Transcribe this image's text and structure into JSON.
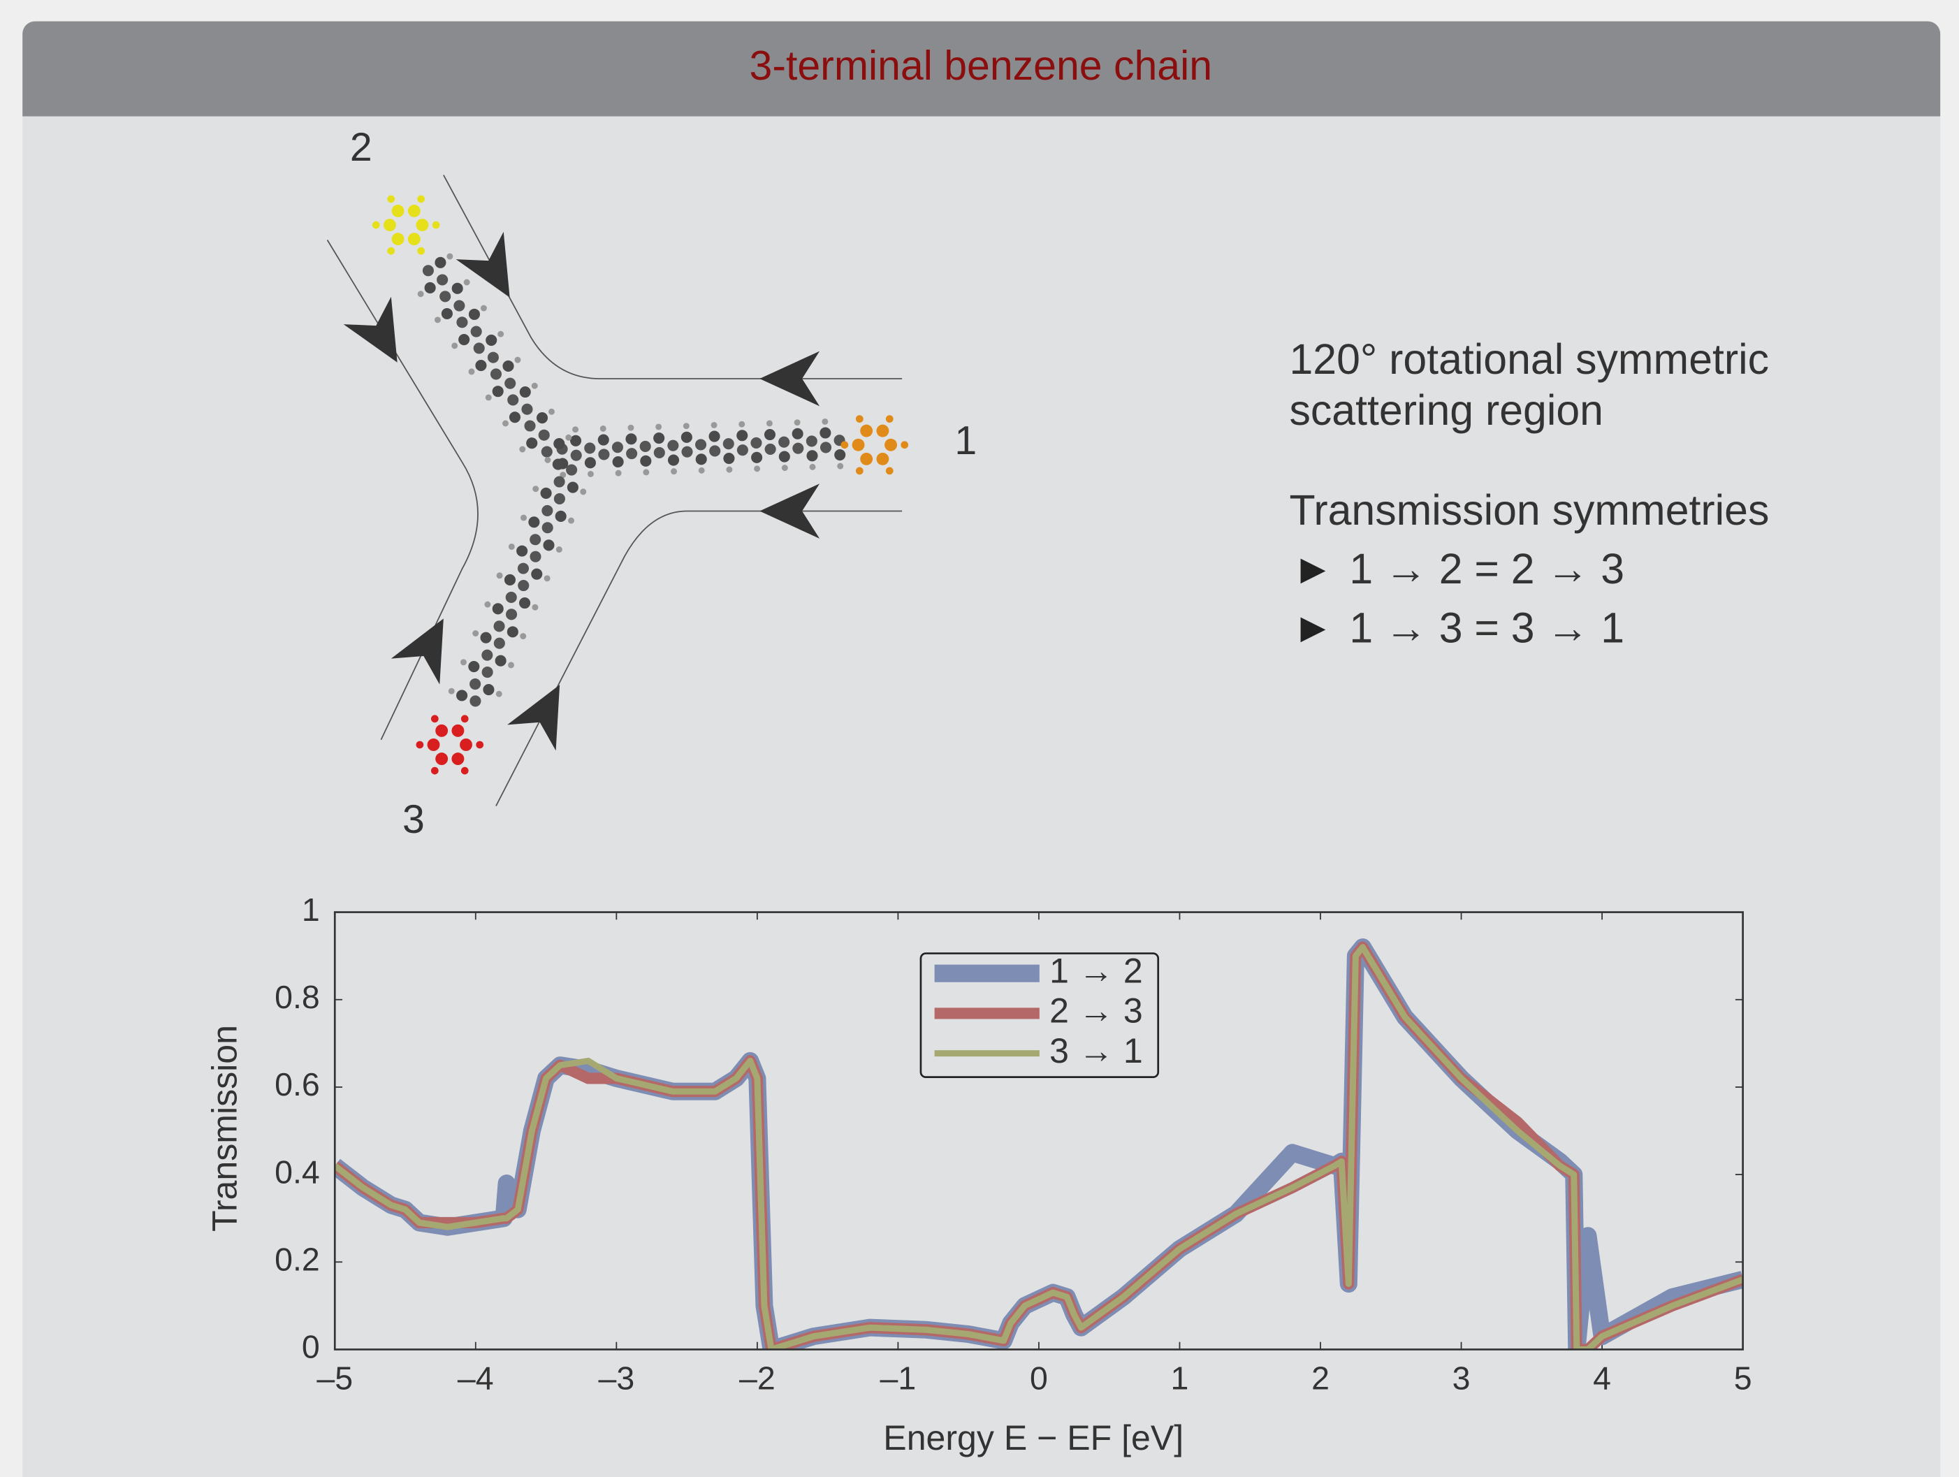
{
  "block_title": "3-terminal benzene chain",
  "diagram": {
    "terminal_labels": [
      "1",
      "2",
      "3"
    ]
  },
  "notes": {
    "description": [
      "120° rotational symmetric",
      "scattering region"
    ],
    "heading": "Transmission symmetries",
    "items": [
      "1 → 2 = 2 → 3",
      "1 → 3 = 3 → 1"
    ]
  },
  "chart_data": {
    "type": "line",
    "xlabel": "Energy E − EF [eV]",
    "ylabel": "Transmission",
    "x": [
      -5,
      -4.8,
      -4.6,
      -4.5,
      -4.4,
      -4.2,
      -4.0,
      -3.8,
      -3.78,
      -3.7,
      -3.6,
      -3.5,
      -3.4,
      -3.2,
      -3.0,
      -2.6,
      -2.3,
      -2.15,
      -2.05,
      -2.0,
      -1.95,
      -1.9,
      -1.6,
      -1.2,
      -0.8,
      -0.5,
      -0.25,
      -0.2,
      -0.1,
      0.1,
      0.2,
      0.25,
      0.3,
      0.6,
      1.0,
      1.4,
      1.8,
      2.1,
      2.15,
      2.2,
      2.25,
      2.3,
      2.6,
      3.0,
      3.4,
      3.7,
      3.8,
      3.82,
      3.9,
      4.0,
      4.5,
      5.0
    ],
    "series": [
      {
        "name": "1 → 2",
        "color": "#7d8db3",
        "values": [
          0.42,
          0.37,
          0.33,
          0.32,
          0.29,
          0.28,
          0.29,
          0.3,
          0.38,
          0.32,
          0.5,
          0.62,
          0.65,
          0.64,
          0.62,
          0.59,
          0.59,
          0.62,
          0.66,
          0.62,
          0.1,
          0,
          0.03,
          0.05,
          0.045,
          0.035,
          0.02,
          0.06,
          0.1,
          0.13,
          0.12,
          0.08,
          0.05,
          0.12,
          0.23,
          0.31,
          0.45,
          0.42,
          0.43,
          0.15,
          0.9,
          0.92,
          0.76,
          0.62,
          0.5,
          0.43,
          0.4,
          0,
          0.26,
          0.03,
          0.12,
          0.16
        ]
      },
      {
        "name": "2 → 3",
        "color": "#b56868",
        "values": [
          0.42,
          0.37,
          0.33,
          0.32,
          0.29,
          0.29,
          0.29,
          0.3,
          0.3,
          0.32,
          0.5,
          0.62,
          0.65,
          0.62,
          0.62,
          0.59,
          0.59,
          0.62,
          0.66,
          0.62,
          0.1,
          0,
          0.03,
          0.05,
          0.045,
          0.035,
          0.02,
          0.06,
          0.1,
          0.13,
          0.12,
          0.08,
          0.05,
          0.12,
          0.23,
          0.31,
          0.37,
          0.42,
          0.43,
          0.15,
          0.9,
          0.92,
          0.76,
          0.62,
          0.52,
          0.42,
          0.4,
          0,
          0,
          0.03,
          0.1,
          0.16
        ]
      },
      {
        "name": "3 → 1",
        "color": "#a6a872",
        "values": [
          0.42,
          0.37,
          0.33,
          0.32,
          0.29,
          0.28,
          0.29,
          0.3,
          0.3,
          0.32,
          0.5,
          0.62,
          0.65,
          0.66,
          0.62,
          0.59,
          0.59,
          0.62,
          0.66,
          0.62,
          0.1,
          0,
          0.03,
          0.05,
          0.045,
          0.035,
          0.02,
          0.06,
          0.1,
          0.13,
          0.12,
          0.08,
          0.05,
          0.12,
          0.23,
          0.31,
          0.37,
          0.42,
          0.43,
          0.15,
          0.9,
          0.92,
          0.76,
          0.62,
          0.5,
          0.42,
          0.4,
          0,
          0,
          0.03,
          0.1,
          0.16
        ]
      }
    ],
    "xlim": [
      -5,
      5
    ],
    "ylim": [
      0,
      1
    ],
    "xticks": [
      {
        "value": -5,
        "label": "–5"
      },
      {
        "value": -4,
        "label": "–4"
      },
      {
        "value": -3,
        "label": "–3"
      },
      {
        "value": -2,
        "label": "–2"
      },
      {
        "value": -1,
        "label": "–1"
      },
      0,
      1,
      2,
      3,
      4,
      5
    ],
    "yticks": [
      0,
      0.2,
      0.4,
      0.6,
      0.8,
      1
    ],
    "legend": "top-center"
  }
}
